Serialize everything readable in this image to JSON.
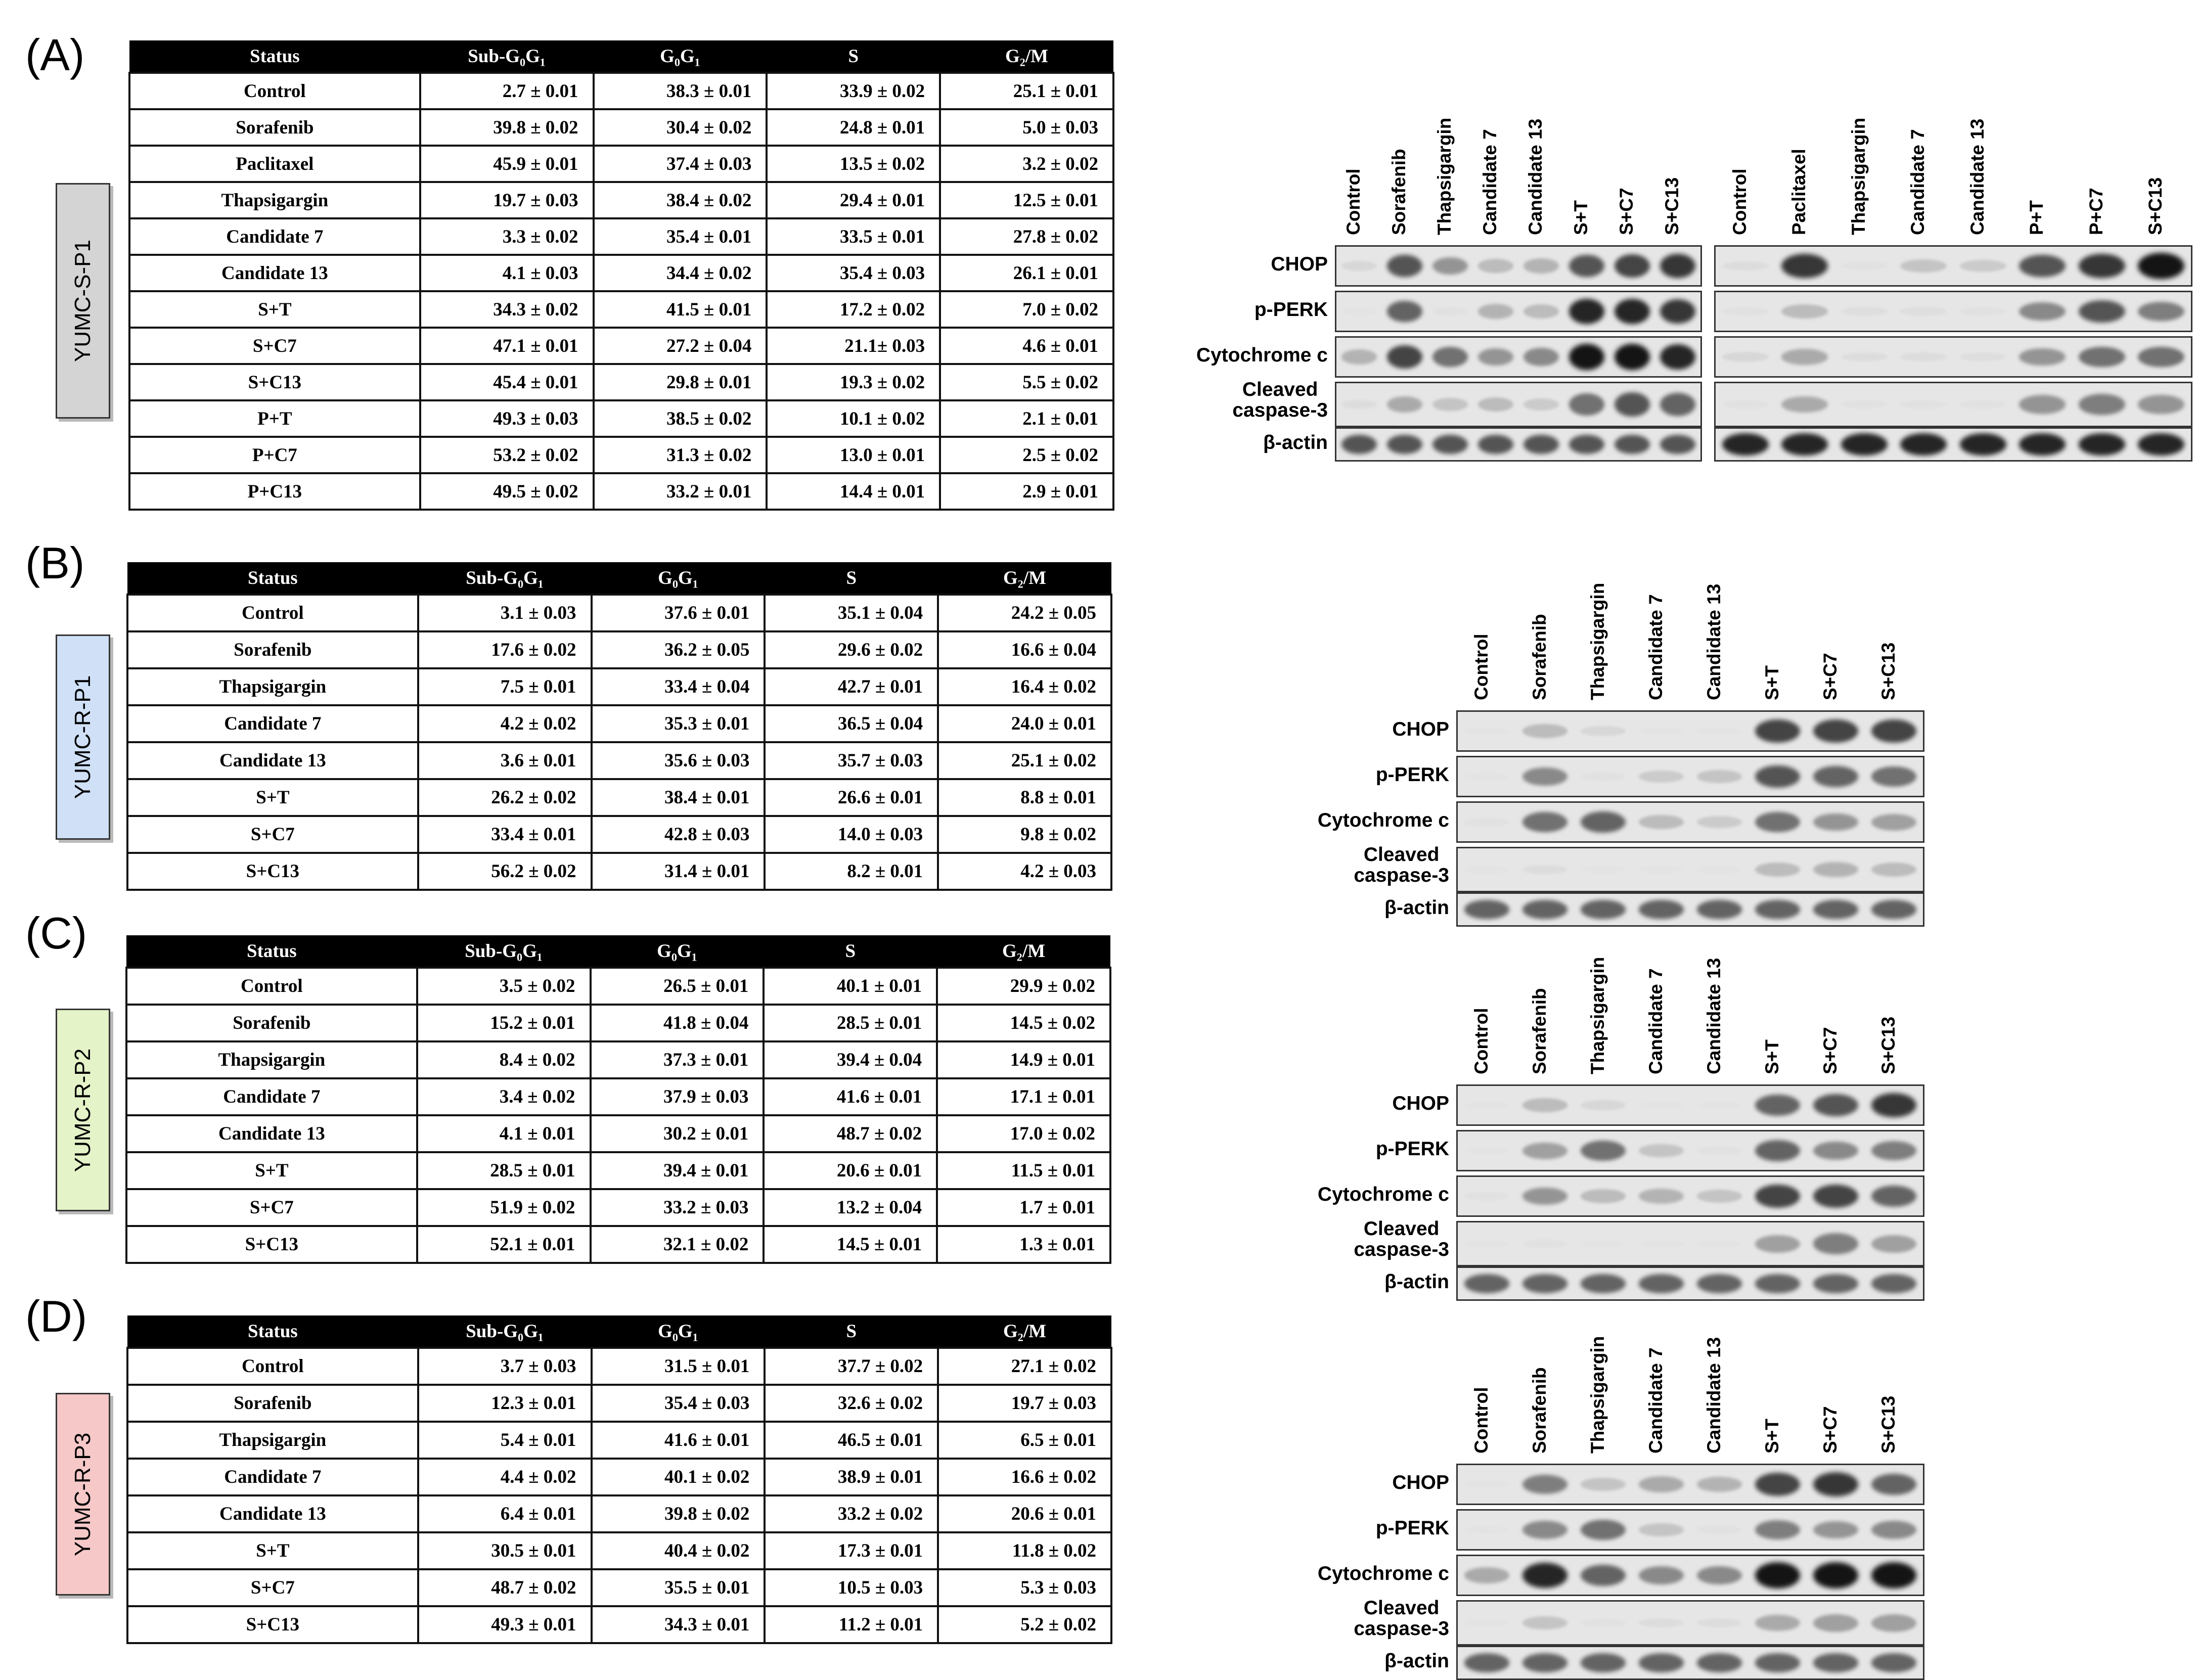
{
  "columns": [
    "Status",
    "Sub-G₀G₁",
    "G₀G₁",
    "S",
    "G₂/M"
  ],
  "blot_labels": {
    "chop": "CHOP",
    "pperk": "p-PERK",
    "cyto": "Cytochrome c",
    "casp_1": "Cleaved",
    "casp_2": "caspase-3",
    "actin": "β-actin"
  },
  "panels": [
    {
      "label": "(A)",
      "cell_line": "YUMC-S-P1",
      "box_color": "#d4d4d4",
      "rows": [
        [
          "Control",
          "2.7 ± 0.01",
          "38.3 ± 0.01",
          "33.9 ± 0.02",
          "25.1 ± 0.01"
        ],
        [
          "Sorafenib",
          "39.8 ± 0.02",
          "30.4 ± 0.02",
          "24.8 ± 0.01",
          "5.0 ± 0.03"
        ],
        [
          "Paclitaxel",
          "45.9 ± 0.01",
          "37.4 ± 0.03",
          "13.5 ± 0.02",
          "3.2 ± 0.02"
        ],
        [
          "Thapsigargin",
          "19.7 ± 0.03",
          "38.4 ± 0.02",
          "29.4 ± 0.01",
          "12.5 ± 0.01"
        ],
        [
          "Candidate  7",
          "3.3 ± 0.02",
          "35.4 ± 0.01",
          "33.5 ± 0.01",
          "27.8 ± 0.02"
        ],
        [
          "Candidate  13",
          "4.1 ± 0.03",
          "34.4 ± 0.02",
          "35.4 ± 0.03",
          "26.1 ± 0.01"
        ],
        [
          "S+T",
          "34.3 ± 0.02",
          "41.5 ± 0.01",
          "17.2 ± 0.02",
          "7.0 ± 0.02"
        ],
        [
          "S+C7",
          "47.1 ± 0.01",
          "27.2 ± 0.04",
          "21.1± 0.03",
          "4.6 ± 0.01"
        ],
        [
          "S+C13",
          "45.4 ± 0.01",
          "29.8 ± 0.01",
          "19.3 ± 0.02",
          "5.5 ± 0.02"
        ],
        [
          "P+T",
          "49.3 ± 0.03",
          "38.5 ± 0.02",
          "10.1 ± 0.02",
          "2.1 ± 0.01"
        ],
        [
          "P+C7",
          "53.2 ± 0.02",
          "31.3 ± 0.02",
          "13.0 ± 0.01",
          "2.5 ± 0.02"
        ],
        [
          "P+C13",
          "49.5 ± 0.02",
          "33.2 ± 0.01",
          "14.4 ± 0.01",
          "2.9 ± 0.01"
        ]
      ],
      "blots": [
        {
          "lanes": [
            "Control",
            "Sorafenib",
            "Thapsigargin",
            "Candidate 7",
            "Candidate 13",
            "S+T",
            "S+C7",
            "S+C13"
          ],
          "intensity": {
            "chop": [
              0.15,
              0.8,
              0.55,
              0.35,
              0.4,
              0.8,
              0.85,
              0.9
            ],
            "pperk": [
              0.02,
              0.75,
              0.05,
              0.4,
              0.35,
              0.95,
              0.95,
              0.9
            ],
            "cyto": [
              0.4,
              0.85,
              0.7,
              0.55,
              0.6,
              1.0,
              1.0,
              0.95
            ],
            "casp": [
              0.1,
              0.45,
              0.3,
              0.35,
              0.25,
              0.7,
              0.8,
              0.75
            ],
            "actin": [
              0.8,
              0.8,
              0.8,
              0.8,
              0.8,
              0.8,
              0.8,
              0.8
            ]
          }
        },
        {
          "lanes": [
            "Control",
            "Paclitaxel",
            "Thapsigargin",
            "Candidate 7",
            "Candidate 13",
            "P+T",
            "P+C7",
            "S+C13"
          ],
          "intensity": {
            "chop": [
              0.1,
              0.9,
              0.05,
              0.3,
              0.25,
              0.8,
              0.9,
              1.0
            ],
            "pperk": [
              0.05,
              0.35,
              0.08,
              0.08,
              0.05,
              0.6,
              0.8,
              0.65
            ],
            "cyto": [
              0.15,
              0.45,
              0.1,
              0.1,
              0.08,
              0.55,
              0.7,
              0.7
            ],
            "casp": [
              0.05,
              0.45,
              0.05,
              0.05,
              0.05,
              0.55,
              0.65,
              0.55
            ],
            "actin": [
              0.95,
              0.95,
              0.95,
              0.95,
              0.95,
              0.95,
              0.95,
              0.95
            ]
          }
        }
      ]
    },
    {
      "label": "(B)",
      "cell_line": "YUMC-R-P1",
      "box_color": "#cfe0f7",
      "rows": [
        [
          "Control",
          "3.1 ± 0.03",
          "37.6 ± 0.01",
          "35.1 ± 0.04",
          "24.2 ± 0.05"
        ],
        [
          "Sorafenib",
          "17.6 ± 0.02",
          "36.2 ± 0.05",
          "29.6 ± 0.02",
          "16.6 ± 0.04"
        ],
        [
          "Thapsigargin",
          "7.5 ± 0.01",
          "33.4 ± 0.04",
          "42.7 ± 0.01",
          "16.4 ± 0.02"
        ],
        [
          "Candidate  7",
          "4.2 ± 0.02",
          "35.3 ± 0.01",
          "36.5 ± 0.04",
          "24.0 ± 0.01"
        ],
        [
          "Candidate  13",
          "3.6 ± 0.01",
          "35.6 ± 0.03",
          "35.7 ± 0.03",
          "25.1 ± 0.02"
        ],
        [
          "S+T",
          "26.2 ± 0.02",
          "38.4 ± 0.01",
          "26.6 ± 0.01",
          "8.8 ± 0.01"
        ],
        [
          "S+C7",
          "33.4 ± 0.01",
          "42.8 ± 0.03",
          "14.0 ± 0.03",
          "9.8 ± 0.02"
        ],
        [
          "S+C13",
          "56.2 ± 0.02",
          "31.4 ± 0.01",
          "8.2 ± 0.01",
          "4.2 ± 0.03"
        ]
      ],
      "blots": [
        {
          "lanes": [
            "Control",
            "Sorafenib",
            "Thapsigargin",
            "Candidate 7",
            "Candidate 13",
            "S+T",
            "S+C7",
            "S+C13"
          ],
          "intensity": {
            "chop": [
              0.02,
              0.35,
              0.15,
              0.02,
              0.02,
              0.85,
              0.85,
              0.85
            ],
            "pperk": [
              0.02,
              0.6,
              0.05,
              0.25,
              0.3,
              0.8,
              0.75,
              0.7
            ],
            "cyto": [
              0.05,
              0.7,
              0.75,
              0.35,
              0.25,
              0.7,
              0.55,
              0.5
            ],
            "casp": [
              0.02,
              0.1,
              0.02,
              0.02,
              0.02,
              0.35,
              0.4,
              0.35
            ],
            "actin": [
              0.75,
              0.75,
              0.75,
              0.75,
              0.75,
              0.75,
              0.75,
              0.75
            ]
          }
        }
      ]
    },
    {
      "label": "(C)",
      "cell_line": "YUMC-R-P2",
      "box_color": "#e4f3c8",
      "rows": [
        [
          "Control",
          "3.5 ± 0.02",
          "26.5 ± 0.01",
          "40.1 ± 0.01",
          "29.9 ± 0.02"
        ],
        [
          "Sorafenib",
          "15.2 ± 0.01",
          "41.8 ± 0.04",
          "28.5 ± 0.01",
          "14.5 ± 0.02"
        ],
        [
          "Thapsigargin",
          "8.4 ± 0.02",
          "37.3 ± 0.01",
          "39.4 ± 0.04",
          "14.9 ± 0.01"
        ],
        [
          "Candidate  7",
          "3.4 ± 0.02",
          "37.9 ± 0.03",
          "41.6 ± 0.01",
          "17.1 ± 0.01"
        ],
        [
          "Candidate  13",
          "4.1 ± 0.01",
          "30.2 ± 0.01",
          "48.7 ± 0.02",
          "17.0 ± 0.02"
        ],
        [
          "S+T",
          "28.5 ± 0.01",
          "39.4 ± 0.01",
          "20.6 ± 0.01",
          "11.5 ± 0.01"
        ],
        [
          "S+C7",
          "51.9 ± 0.02",
          "33.2 ± 0.03",
          "13.2 ± 0.04",
          "1.7 ± 0.01"
        ],
        [
          "S+C13",
          "52.1 ± 0.01",
          "32.1 ± 0.02",
          "14.5 ± 0.01",
          "1.3 ± 0.01"
        ]
      ],
      "blots": [
        {
          "lanes": [
            "Control",
            "Sorafenib",
            "Thapsigargin",
            "Candidate 7",
            "Candidate 13",
            "S+T",
            "S+C7",
            "S+C13"
          ],
          "intensity": {
            "chop": [
              0.02,
              0.35,
              0.15,
              0.02,
              0.02,
              0.75,
              0.8,
              0.9
            ],
            "pperk": [
              0.02,
              0.5,
              0.7,
              0.3,
              0.05,
              0.75,
              0.6,
              0.65
            ],
            "cyto": [
              0.05,
              0.55,
              0.35,
              0.4,
              0.3,
              0.85,
              0.85,
              0.75
            ],
            "casp": [
              0.02,
              0.05,
              0.02,
              0.02,
              0.02,
              0.5,
              0.65,
              0.5
            ],
            "actin": [
              0.75,
              0.75,
              0.75,
              0.75,
              0.75,
              0.75,
              0.75,
              0.75
            ]
          }
        }
      ]
    },
    {
      "label": "(D)",
      "cell_line": "YUMC-R-P3",
      "box_color": "#f6c8c8",
      "rows": [
        [
          "Control",
          "3.7 ± 0.03",
          "31.5 ± 0.01",
          "37.7 ± 0.02",
          "27.1 ± 0.02"
        ],
        [
          "Sorafenib",
          "12.3 ± 0.01",
          "35.4 ± 0.03",
          "32.6 ± 0.02",
          "19.7 ± 0.03"
        ],
        [
          "Thapsigargin",
          "5.4 ± 0.01",
          "41.6 ± 0.01",
          "46.5 ± 0.01",
          "6.5  ± 0.01"
        ],
        [
          "Candidate  7",
          "4.4 ± 0.02",
          "40.1 ± 0.02",
          "38.9 ± 0.01",
          "16.6 ± 0.02"
        ],
        [
          "Candidate  13",
          "6.4 ± 0.01",
          "39.8 ± 0.02",
          "33.2 ± 0.02",
          "20.6 ± 0.01"
        ],
        [
          "S+T",
          "30.5 ± 0.01",
          "40.4 ± 0.02",
          "17.3 ± 0.01",
          "11.8 ± 0.02"
        ],
        [
          "S+C7",
          "48.7 ± 0.02",
          "35.5 ± 0.01",
          "10.5 ± 0.03",
          "5.3 ± 0.03"
        ],
        [
          "S+C13",
          "49.3 ± 0.01",
          "34.3 ± 0.01",
          "11.2 ± 0.01",
          "5.2 ± 0.02"
        ]
      ],
      "blots": [
        {
          "lanes": [
            "Control",
            "Sorafenib",
            "Thapsigargin",
            "Candidate 7",
            "Candidate 13",
            "S+T",
            "S+C7",
            "S+C13"
          ],
          "intensity": {
            "chop": [
              0.02,
              0.65,
              0.3,
              0.45,
              0.4,
              0.85,
              0.9,
              0.75
            ],
            "pperk": [
              0.02,
              0.6,
              0.7,
              0.3,
              0.05,
              0.65,
              0.55,
              0.6
            ],
            "cyto": [
              0.45,
              0.95,
              0.75,
              0.6,
              0.6,
              1.0,
              1.0,
              1.0
            ],
            "casp": [
              0.02,
              0.3,
              0.05,
              0.1,
              0.1,
              0.45,
              0.5,
              0.5
            ],
            "actin": [
              0.75,
              0.75,
              0.75,
              0.75,
              0.75,
              0.75,
              0.75,
              0.75
            ]
          }
        }
      ]
    }
  ]
}
